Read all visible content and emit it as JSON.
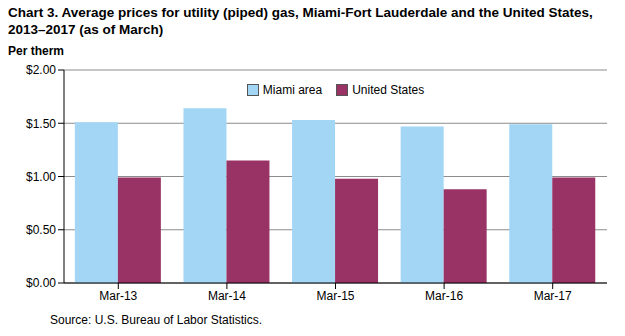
{
  "chart_data": {
    "type": "bar",
    "title": "Chart 3. Average prices for utility (piped) gas, Miami-Fort Lauderdale and the United States, 2013–2017 (as of March)",
    "y_label": "Per therm",
    "source": "Source: U.S. Bureau of Labor Statistics.",
    "categories": [
      "Mar-13",
      "Mar-14",
      "Mar-15",
      "Mar-16",
      "Mar-17"
    ],
    "series": [
      {
        "name": "Miami area",
        "color": "#a3d6f5",
        "values": [
          1.51,
          1.64,
          1.53,
          1.47,
          1.49
        ]
      },
      {
        "name": "United States",
        "color": "#993366",
        "values": [
          0.99,
          1.15,
          0.98,
          0.88,
          0.99
        ]
      }
    ],
    "ylim": [
      0,
      2
    ],
    "yticks": [
      {
        "value": 0,
        "label": "$0.00"
      },
      {
        "value": 0.5,
        "label": "$0.50"
      },
      {
        "value": 1,
        "label": "$1.00"
      },
      {
        "value": 1.5,
        "label": "$1.50"
      },
      {
        "value": 2,
        "label": "$2.00"
      }
    ],
    "grid": true,
    "legend": "top"
  }
}
